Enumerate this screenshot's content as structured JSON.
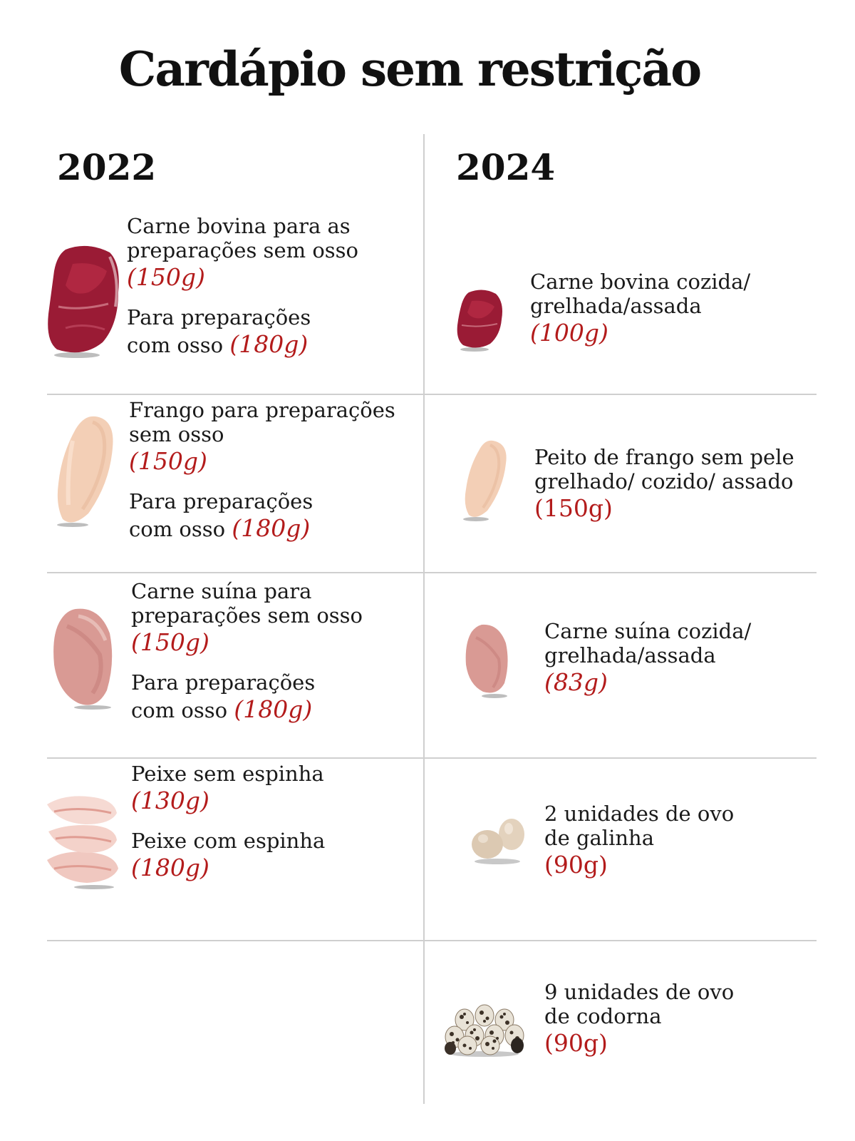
{
  "title": "Cardápio sem restrição",
  "columns": {
    "left_year": "2022",
    "right_year": "2024"
  },
  "left": {
    "beef": {
      "line1": "Carne bovina para as",
      "line2": "preparações sem osso",
      "g1": "(150g)",
      "line3": "Para preparações",
      "line4": "com osso",
      "g2": "(180g)"
    },
    "chicken": {
      "line1": "Frango para preparações",
      "line2": "sem osso",
      "g1": "(150g)",
      "line3": "Para preparações",
      "line4": "com osso",
      "g2": "(180g)"
    },
    "pork": {
      "line1": "Carne suína para",
      "line2": "preparações sem osso",
      "g1": "(150g)",
      "line3": "Para preparações",
      "line4": "com osso",
      "g2": "(180g)"
    },
    "fish": {
      "line1": "Peixe sem espinha",
      "g1": "(130g)",
      "line2": "Peixe com espinha",
      "g2": "(180g)"
    }
  },
  "right": {
    "beef": {
      "line1": "Carne bovina cozida/",
      "line2": "grelhada/assada",
      "g": "(100g)"
    },
    "chicken": {
      "line1": "Peito de frango sem pele",
      "line2": "grelhado/ cozido/ assado",
      "g": "(150g)"
    },
    "pork": {
      "line1": "Carne suína cozida/",
      "line2": "grelhada/assada",
      "g": "(83g)"
    },
    "egg": {
      "line1": "2 unidades de ovo",
      "line2": "de galinha",
      "g": "(90g)"
    },
    "quail": {
      "line1": "9 unidades de ovo",
      "line2": "de codorna",
      "g": "(90g)"
    }
  },
  "icons": [
    "beef-steak-icon",
    "chicken-breast-icon",
    "pork-cut-icon",
    "fish-fillet-icon",
    "chicken-eggs-icon",
    "quail-eggs-icon"
  ],
  "colors": {
    "accent": "#b31b1b",
    "divider": "#cfcfcf"
  }
}
